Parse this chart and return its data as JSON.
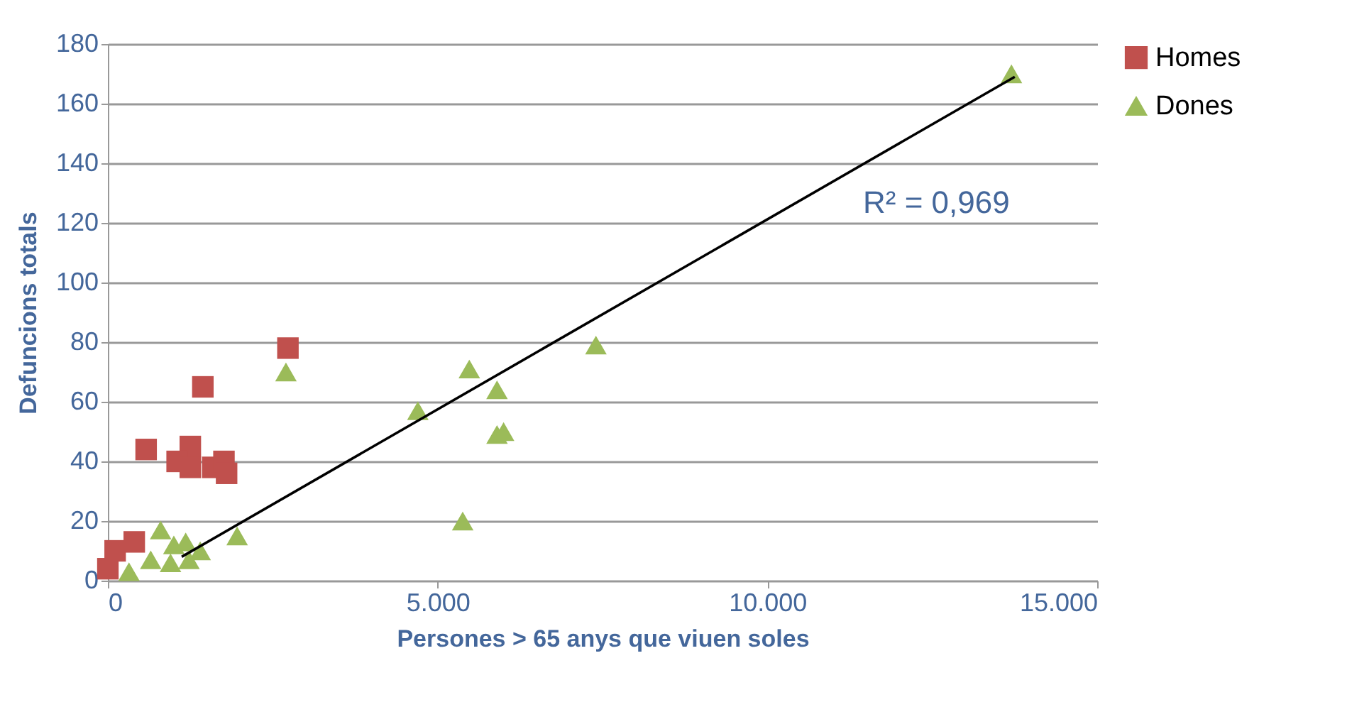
{
  "chart_data": {
    "type": "scatter",
    "xlabel": "Persones > 65 anys que viuen soles",
    "ylabel": "Defuncions totals",
    "xlim": [
      0,
      15000
    ],
    "xticks": [
      {
        "value": 0,
        "label": "0"
      },
      {
        "value": 5000,
        "label": "5.000"
      },
      {
        "value": 10000,
        "label": "10.000"
      },
      {
        "value": 15000,
        "label": "15.000"
      }
    ],
    "ylim": [
      0,
      180
    ],
    "yticks": [
      0,
      20,
      40,
      60,
      80,
      100,
      120,
      140,
      160,
      180
    ],
    "grid": "y",
    "legend": "right",
    "series": [
      {
        "name": "Homes",
        "color": "#c0504d",
        "marker": "square",
        "x": [
          580,
          2730,
          1440,
          1250,
          1050,
          1250,
          1590,
          1760,
          1800,
          300,
          110,
          0,
          400
        ],
        "values": [
          44,
          78,
          65,
          45,
          40,
          38,
          38,
          40,
          36,
          null,
          10,
          4,
          13
        ]
      },
      {
        "name": "Dones",
        "color": "#9bbb59",
        "marker": "triangle",
        "x": [
          13700,
          7400,
          5480,
          5900,
          4700,
          5900,
          6000,
          5380,
          2700,
          1960,
          800,
          1180,
          1400,
          1000,
          650,
          320,
          950,
          1230
        ],
        "values": [
          170,
          79,
          71,
          64,
          57,
          49,
          50,
          20,
          70,
          15,
          17,
          13,
          10,
          12,
          7,
          3,
          6,
          7
        ]
      },
      {
        "type": "line",
        "color": "#000000",
        "marker": "none",
        "x": [
          1120,
          13750
        ],
        "values": [
          8,
          169
        ]
      }
    ],
    "annotations": [
      "R² = 0,969"
    ]
  }
}
